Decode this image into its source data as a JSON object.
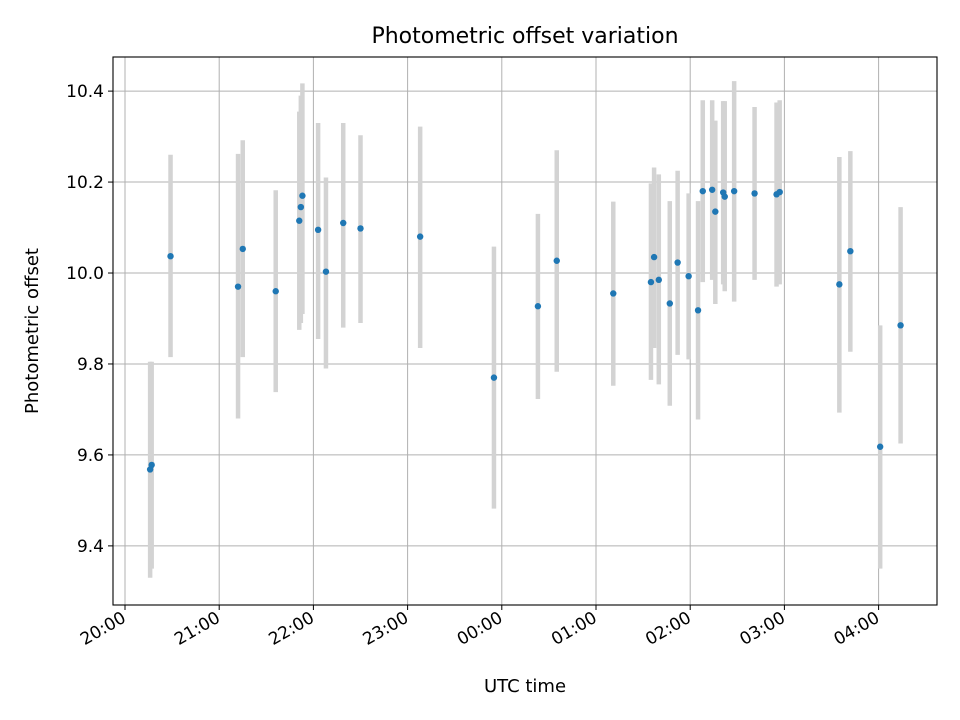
{
  "chart_data": {
    "type": "scatter",
    "title": "Photometric offset variation",
    "xlabel": "UTC time",
    "ylabel": "Photometric offset",
    "x_tick_labels": [
      "20:00",
      "21:00",
      "22:00",
      "23:00",
      "00:00",
      "01:00",
      "02:00",
      "03:00",
      "04:00"
    ],
    "y_tick_labels": [
      "9.4",
      "9.6",
      "9.8",
      "10.0",
      "10.2",
      "10.4"
    ],
    "y_ticks": [
      9.4,
      9.6,
      9.8,
      10.0,
      10.2,
      10.4
    ],
    "xlim": [
      "19:55",
      "04:30"
    ],
    "ylim": [
      9.27,
      10.475
    ],
    "grid": true,
    "colors": {
      "points": "#1f77b4",
      "errorbars": "#d3d3d3",
      "grid": "#b0b0b0"
    },
    "points": [
      {
        "t": "20:16",
        "y": 9.568,
        "ylo": 9.33,
        "yhi": 9.805
      },
      {
        "t": "20:17",
        "y": 9.578,
        "ylo": 9.35,
        "yhi": 9.805
      },
      {
        "t": "20:29",
        "y": 10.037,
        "ylo": 9.815,
        "yhi": 10.26
      },
      {
        "t": "21:12",
        "y": 9.97,
        "ylo": 9.68,
        "yhi": 10.262
      },
      {
        "t": "21:15",
        "y": 10.053,
        "ylo": 9.815,
        "yhi": 10.292
      },
      {
        "t": "21:36",
        "y": 9.96,
        "ylo": 9.738,
        "yhi": 10.182
      },
      {
        "t": "21:51",
        "y": 10.115,
        "ylo": 9.875,
        "yhi": 10.355
      },
      {
        "t": "21:52",
        "y": 10.145,
        "ylo": 9.89,
        "yhi": 10.39
      },
      {
        "t": "21:53",
        "y": 10.17,
        "ylo": 9.91,
        "yhi": 10.417
      },
      {
        "t": "22:03",
        "y": 10.095,
        "ylo": 9.855,
        "yhi": 10.33
      },
      {
        "t": "22:08",
        "y": 10.003,
        "ylo": 9.79,
        "yhi": 10.21
      },
      {
        "t": "22:19",
        "y": 10.11,
        "ylo": 9.88,
        "yhi": 10.33
      },
      {
        "t": "22:30",
        "y": 10.098,
        "ylo": 9.89,
        "yhi": 10.303
      },
      {
        "t": "23:08",
        "y": 10.08,
        "ylo": 9.835,
        "yhi": 10.322
      },
      {
        "t": "23:55",
        "y": 9.77,
        "ylo": 9.482,
        "yhi": 10.058
      },
      {
        "t": "00:23",
        "y": 9.927,
        "ylo": 9.723,
        "yhi": 10.13
      },
      {
        "t": "00:35",
        "y": 10.027,
        "ylo": 9.783,
        "yhi": 10.27
      },
      {
        "t": "01:11",
        "y": 9.955,
        "ylo": 9.752,
        "yhi": 10.157
      },
      {
        "t": "01:35",
        "y": 9.98,
        "ylo": 9.765,
        "yhi": 10.197
      },
      {
        "t": "01:37",
        "y": 10.035,
        "ylo": 9.835,
        "yhi": 10.232
      },
      {
        "t": "01:40",
        "y": 9.985,
        "ylo": 9.755,
        "yhi": 10.217
      },
      {
        "t": "01:47",
        "y": 9.933,
        "ylo": 9.708,
        "yhi": 10.158
      },
      {
        "t": "01:52",
        "y": 10.023,
        "ylo": 9.82,
        "yhi": 10.225
      },
      {
        "t": "01:59",
        "y": 9.993,
        "ylo": 9.81,
        "yhi": 10.175
      },
      {
        "t": "02:05",
        "y": 9.918,
        "ylo": 9.678,
        "yhi": 10.158
      },
      {
        "t": "02:08",
        "y": 10.18,
        "ylo": 9.98,
        "yhi": 10.38
      },
      {
        "t": "02:14",
        "y": 10.183,
        "ylo": 9.985,
        "yhi": 10.38
      },
      {
        "t": "02:16",
        "y": 10.135,
        "ylo": 9.932,
        "yhi": 10.335
      },
      {
        "t": "02:21",
        "y": 10.177,
        "ylo": 9.975,
        "yhi": 10.378
      },
      {
        "t": "02:22",
        "y": 10.168,
        "ylo": 9.96,
        "yhi": 10.378
      },
      {
        "t": "02:28",
        "y": 10.18,
        "ylo": 9.937,
        "yhi": 10.422
      },
      {
        "t": "02:41",
        "y": 10.175,
        "ylo": 9.985,
        "yhi": 10.365
      },
      {
        "t": "02:55",
        "y": 10.173,
        "ylo": 9.97,
        "yhi": 10.375
      },
      {
        "t": "02:57",
        "y": 10.178,
        "ylo": 9.975,
        "yhi": 10.38
      },
      {
        "t": "03:35",
        "y": 9.975,
        "ylo": 9.693,
        "yhi": 10.255
      },
      {
        "t": "03:42",
        "y": 10.048,
        "ylo": 9.827,
        "yhi": 10.268
      },
      {
        "t": "04:01",
        "y": 9.618,
        "ylo": 9.35,
        "yhi": 9.885
      },
      {
        "t": "04:14",
        "y": 9.885,
        "ylo": 9.625,
        "yhi": 10.145
      }
    ]
  }
}
